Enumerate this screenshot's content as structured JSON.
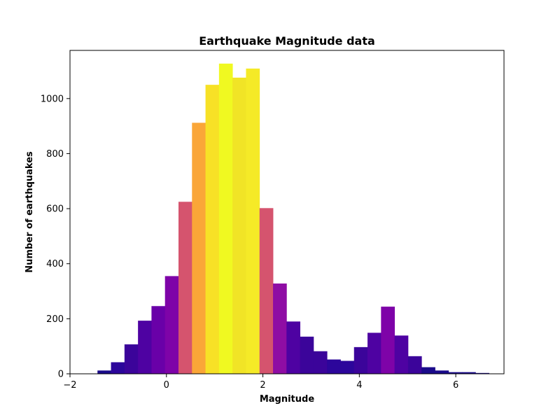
{
  "chart_data": {
    "type": "bar",
    "title": "Earthquake Magnitude data",
    "xlabel": "Magnitude",
    "ylabel": "Number of earthquakes",
    "xlim": [
      -2.0,
      7.0
    ],
    "ylim": [
      0,
      1175
    ],
    "x_ticks": [
      -2,
      0,
      2,
      4,
      6
    ],
    "x_tick_labels": [
      "−2",
      "0",
      "2",
      "4",
      "6"
    ],
    "y_ticks": [
      0,
      200,
      400,
      600,
      800,
      1000
    ],
    "y_tick_labels": [
      "0",
      "200",
      "400",
      "600",
      "800",
      "1000"
    ],
    "grid": false,
    "bin_edges": [
      -1.43,
      -1.15,
      -0.87,
      -0.59,
      -0.31,
      -0.03,
      0.25,
      0.53,
      0.81,
      1.09,
      1.37,
      1.65,
      1.93,
      2.21,
      2.49,
      2.77,
      3.05,
      3.33,
      3.61,
      3.89,
      4.17,
      4.45,
      4.73,
      5.01,
      5.29,
      5.57,
      5.85,
      6.13,
      6.41,
      6.69
    ],
    "values": [
      12,
      42,
      107,
      193,
      246,
      355,
      625,
      912,
      1050,
      1127,
      1076,
      1109,
      602,
      328,
      190,
      135,
      82,
      52,
      47,
      97,
      149,
      244,
      139,
      64,
      24,
      12,
      6,
      6,
      3
    ],
    "colors": [
      "#1a0a8a",
      "#2c069b",
      "#3b049a",
      "#4e02a2",
      "#6900a8",
      "#7e03a8",
      "#d5546e",
      "#faa638",
      "#f7e126",
      "#f0f921",
      "#f1e426",
      "#f5ea27",
      "#d5546e",
      "#8f0da4",
      "#4e02a2",
      "#3b049a",
      "#3b049a",
      "#2c069b",
      "#2c069b",
      "#3b049a",
      "#4e02a2",
      "#7e03a8",
      "#4e02a2",
      "#3b049a",
      "#1a0a8a",
      "#1a0a8a",
      "#1a0a8a",
      "#1a0a8a",
      "#1a0a8a"
    ]
  }
}
